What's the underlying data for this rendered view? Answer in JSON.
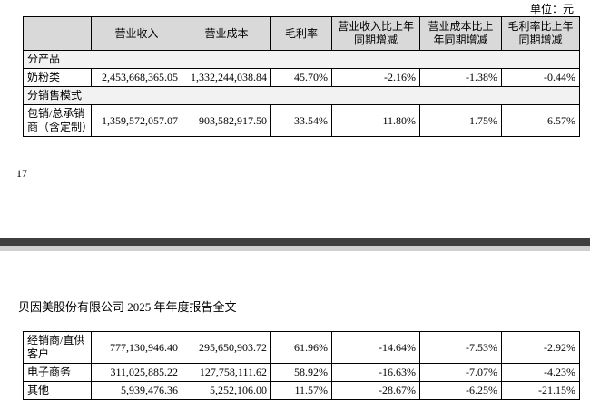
{
  "unit": "单位：元",
  "table1": {
    "columns": [
      "营业收入",
      "营业成本",
      "毛利率",
      "营业收入比上年同期增减",
      "营业成本比上年同期增减",
      "毛利率比上年同期增减"
    ],
    "rows": [
      {
        "section": "分产品"
      },
      {
        "cells": [
          "奶粉类",
          "2,453,668,365.05",
          "1,332,244,038.84",
          "45.70%",
          "-2.16%",
          "-1.38%",
          "-0.44%"
        ]
      },
      {
        "section": "分销售模式"
      },
      {
        "cells": [
          "包销/总承销商（含定制）",
          "1,359,572,057.07",
          "903,582,917.50",
          "33.54%",
          "11.80%",
          "1.75%",
          "6.57%"
        ]
      }
    ]
  },
  "page_number": "17",
  "footer_title": "贝因美股份有限公司 2025 年年度报告全文",
  "table2": {
    "rows": [
      [
        "经销商/直供客户",
        "777,130,946.40",
        "295,650,903.72",
        "61.96%",
        "-14.64%",
        "-7.53%",
        "-2.92%"
      ],
      [
        "电子商务",
        "311,025,885.22",
        "127,758,111.62",
        "58.92%",
        "-16.63%",
        "-7.07%",
        "-4.23%"
      ],
      [
        "其他",
        "5,939,476.36",
        "5,252,106.00",
        "11.57%",
        "-28.67%",
        "-6.25%",
        "-21.15%"
      ]
    ]
  }
}
